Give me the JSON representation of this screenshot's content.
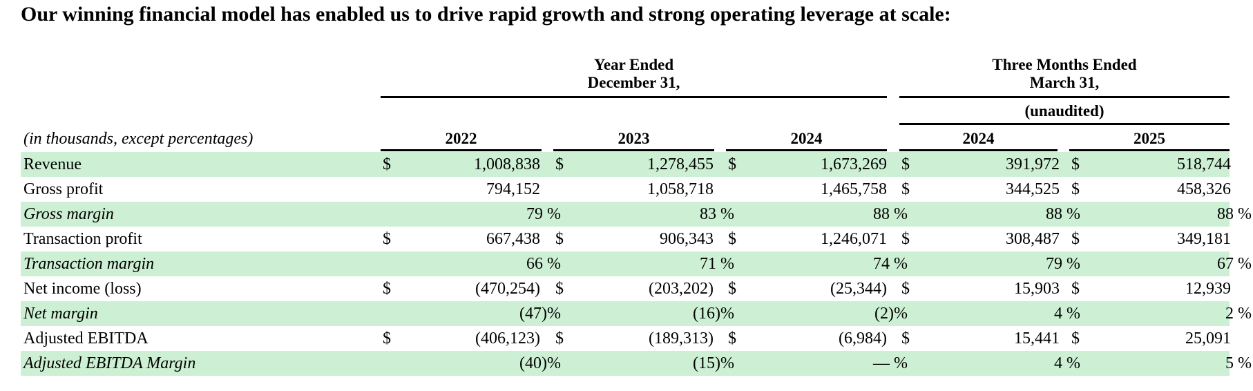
{
  "heading": "Our winning financial model has enabled us to drive rapid growth and strong operating leverage at scale:",
  "header": {
    "year_group_line1": "Year Ended",
    "year_group_line2": "December 31,",
    "quarter_group_line1": "Three Months Ended",
    "quarter_group_line2": "March 31,",
    "unaudited": "(unaudited)",
    "units_note": "(in thousands, except percentages)",
    "columns": [
      "2022",
      "2023",
      "2024",
      "2024",
      "2025"
    ]
  },
  "rows": [
    {
      "label": "Revenue",
      "currency": [
        "$",
        "$",
        "$",
        "$",
        "$"
      ],
      "values": [
        "1,008,838",
        "1,278,455",
        "1,673,269",
        "391,972",
        "518,744"
      ]
    },
    {
      "label": "Gross profit",
      "currency": [
        "",
        "",
        "",
        "$",
        "$"
      ],
      "values": [
        "794,152",
        "1,058,718",
        "1,465,758",
        "344,525",
        "458,326"
      ]
    },
    {
      "label": "Gross margin",
      "currency": [
        "",
        "",
        "",
        "",
        ""
      ],
      "values": [
        "79 %",
        "83 %",
        "88 %",
        "88 %",
        "88 %"
      ]
    },
    {
      "label": "Transaction profit",
      "currency": [
        "$",
        "$",
        "$",
        "$",
        "$"
      ],
      "values": [
        "667,438",
        "906,343",
        "1,246,071",
        "308,487",
        "349,181"
      ]
    },
    {
      "label": "Transaction margin",
      "currency": [
        "",
        "",
        "",
        "",
        ""
      ],
      "values": [
        "66 %",
        "71 %",
        "74 %",
        "79 %",
        "67 %"
      ]
    },
    {
      "label": "Net income (loss)",
      "currency": [
        "$",
        "$",
        "$",
        "$",
        "$"
      ],
      "values": [
        "(470,254)",
        "(203,202)",
        "(25,344)",
        "15,903",
        "12,939"
      ]
    },
    {
      "label": "Net margin",
      "currency": [
        "",
        "",
        "",
        "",
        ""
      ],
      "values": [
        "(47)%",
        "(16)%",
        "(2)%",
        "4 %",
        "2 %"
      ]
    },
    {
      "label": "Adjusted EBITDA",
      "currency": [
        "$",
        "$",
        "$",
        "$",
        "$"
      ],
      "values": [
        "(406,123)",
        "(189,313)",
        "(6,984)",
        "15,441",
        "25,091"
      ]
    },
    {
      "label": "Adjusted EBITDA Margin",
      "currency": [
        "",
        "",
        "",
        "",
        ""
      ],
      "values": [
        "(40)%",
        "(15)%",
        "— %",
        "4 %",
        "5 %"
      ]
    }
  ]
}
